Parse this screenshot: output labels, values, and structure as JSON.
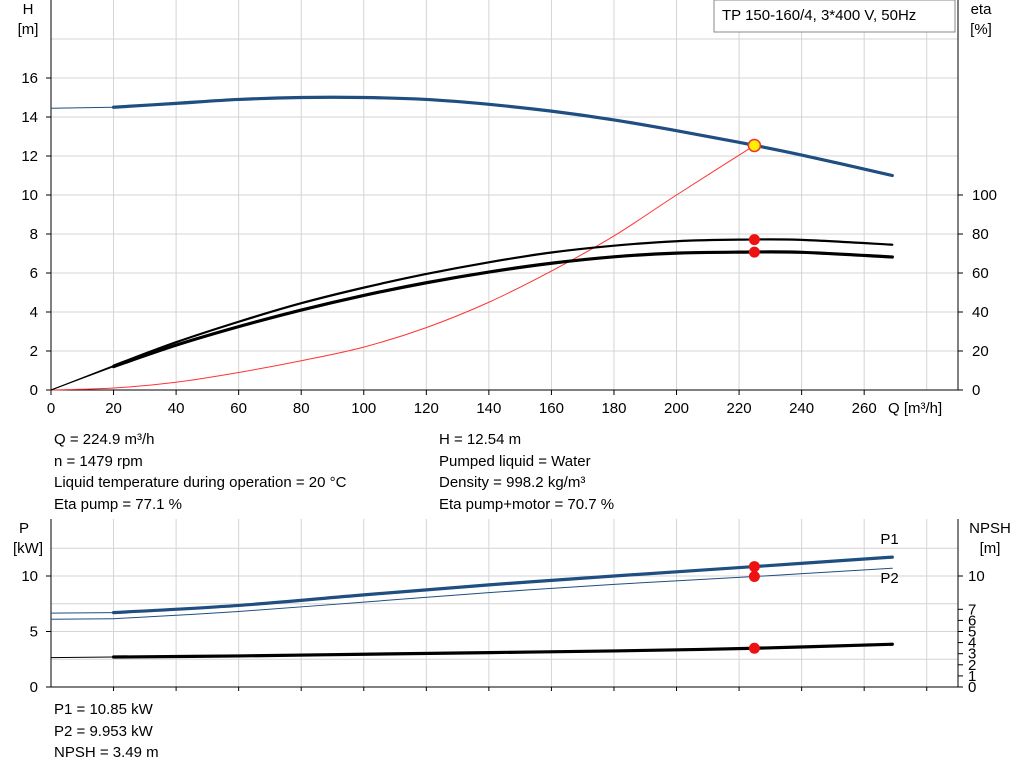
{
  "chart_data": [
    {
      "type": "line",
      "title": "TP 150-160/4, 3*400 V, 50Hz",
      "xlabel": "Q [m³/h]",
      "ylabel_left": [
        "H",
        "[m]"
      ],
      "ylabel_right": [
        "eta",
        "[%]"
      ],
      "xlim": [
        0,
        290
      ],
      "ylim_left": [
        0,
        16
      ],
      "ylim_right": [
        0,
        100
      ],
      "grid": true,
      "x_ticks": [
        0,
        20,
        40,
        60,
        80,
        100,
        120,
        140,
        160,
        180,
        200,
        220,
        240,
        260
      ],
      "y_ticks_left": [
        0,
        2,
        4,
        6,
        8,
        10,
        12,
        14,
        16
      ],
      "y_ticks_right": [
        0,
        20,
        40,
        60,
        80,
        100
      ],
      "series": [
        {
          "role": "H pump curve",
          "axis": "left",
          "color": "#1f4e80",
          "style": "thick",
          "x": [
            20,
            40,
            60,
            80,
            100,
            120,
            140,
            160,
            180,
            200,
            220,
            240,
            269
          ],
          "y": [
            14.5,
            14.7,
            14.9,
            15.0,
            15.0,
            14.9,
            14.65,
            14.3,
            13.85,
            13.3,
            12.7,
            12.05,
            11.0
          ],
          "x_lead": [
            0,
            20
          ],
          "y_lead": [
            14.45,
            14.5
          ]
        },
        {
          "role": "system curve",
          "axis": "left",
          "color": "#ff3333",
          "style": "thin",
          "x": [
            0,
            20,
            40,
            60,
            80,
            100,
            120,
            140,
            160,
            180,
            200,
            224.9
          ],
          "y": [
            0,
            0.1,
            0.4,
            0.9,
            1.5,
            2.2,
            3.2,
            4.5,
            6.1,
            7.9,
            10.0,
            12.54
          ]
        },
        {
          "role": "eta pump",
          "axis": "right",
          "color": "#000000",
          "style": "medium",
          "x": [
            20,
            40,
            60,
            80,
            100,
            120,
            140,
            160,
            180,
            200,
            220,
            240,
            269
          ],
          "y": [
            12.5,
            24.5,
            35.0,
            44.5,
            52.5,
            59.5,
            65.5,
            70.5,
            74.0,
            76.3,
            77.1,
            77.0,
            74.5
          ],
          "x_lead": [
            0,
            20
          ],
          "y_lead": [
            0,
            12.5
          ]
        },
        {
          "role": "eta pump+motor",
          "axis": "right",
          "color": "#000000",
          "style": "thick",
          "x": [
            20,
            40,
            60,
            80,
            100,
            120,
            140,
            160,
            180,
            200,
            220,
            240,
            269
          ],
          "y": [
            12.0,
            23.0,
            32.5,
            41.0,
            48.5,
            55.0,
            60.5,
            65.0,
            68.3,
            70.2,
            70.7,
            70.6,
            68.2
          ],
          "x_lead": [
            0,
            20
          ],
          "y_lead": [
            0,
            12.0
          ]
        }
      ],
      "operating_point": {
        "x": 224.9,
        "H": 12.54,
        "eta_pump": 77.1,
        "eta_total": 70.7,
        "marker_color": "#ffee00",
        "point_color": "#ee1111"
      }
    },
    {
      "type": "line",
      "xlabel": "",
      "ylabel_left": [
        "P",
        "[kW]"
      ],
      "ylabel_right": [
        "NPSH",
        "[m]"
      ],
      "xlim": [
        0,
        290
      ],
      "ylim_left": [
        0,
        12.5
      ],
      "ylim_right": [
        0,
        12.5
      ],
      "grid": true,
      "y_ticks_left": [
        0,
        5,
        10
      ],
      "y_ticks_right": [
        0,
        1,
        2,
        3,
        4,
        5,
        6,
        7,
        10
      ],
      "series": [
        {
          "name": "P1",
          "axis": "left",
          "color": "#1f4e80",
          "style": "thick",
          "x": [
            20,
            60,
            100,
            140,
            180,
            224.9,
            269
          ],
          "y": [
            6.7,
            7.35,
            8.3,
            9.2,
            10.0,
            10.85,
            11.7
          ],
          "x_lead": [
            0,
            20
          ],
          "y_lead": [
            6.65,
            6.7
          ]
        },
        {
          "name": "P2",
          "axis": "left",
          "color": "#1f4e80",
          "style": "thin",
          "x": [
            20,
            60,
            100,
            140,
            180,
            224.9,
            269
          ],
          "y": [
            6.15,
            6.8,
            7.65,
            8.5,
            9.25,
            9.953,
            10.7
          ],
          "x_lead": [
            0,
            20
          ],
          "y_lead": [
            6.1,
            6.15
          ]
        },
        {
          "role": "NPSH",
          "axis": "right",
          "color": "#000000",
          "style": "thick",
          "x": [
            20,
            60,
            100,
            140,
            180,
            224.9,
            269
          ],
          "y": [
            2.7,
            2.8,
            2.95,
            3.1,
            3.25,
            3.49,
            3.85
          ],
          "x_lead": [
            0,
            20
          ],
          "y_lead": [
            2.65,
            2.7
          ]
        }
      ],
      "operating_point": {
        "x": 224.9,
        "P1": 10.85,
        "P2": 9.953,
        "NPSH": 3.49,
        "point_color": "#ee1111"
      }
    }
  ],
  "info_top_left": [
    "Q = 224.9 m³/h",
    "n = 1479 rpm",
    "Liquid temperature during operation = 20 °C",
    "Eta pump = 77.1 %"
  ],
  "info_top_right": [
    "H = 12.54 m",
    "Pumped liquid = Water",
    "Density = 998.2 kg/m³",
    "Eta pump+motor = 70.7 %"
  ],
  "info_bottom": [
    "P1 = 10.85 kW",
    "P2 = 9.953 kW",
    "NPSH = 3.49 m"
  ]
}
